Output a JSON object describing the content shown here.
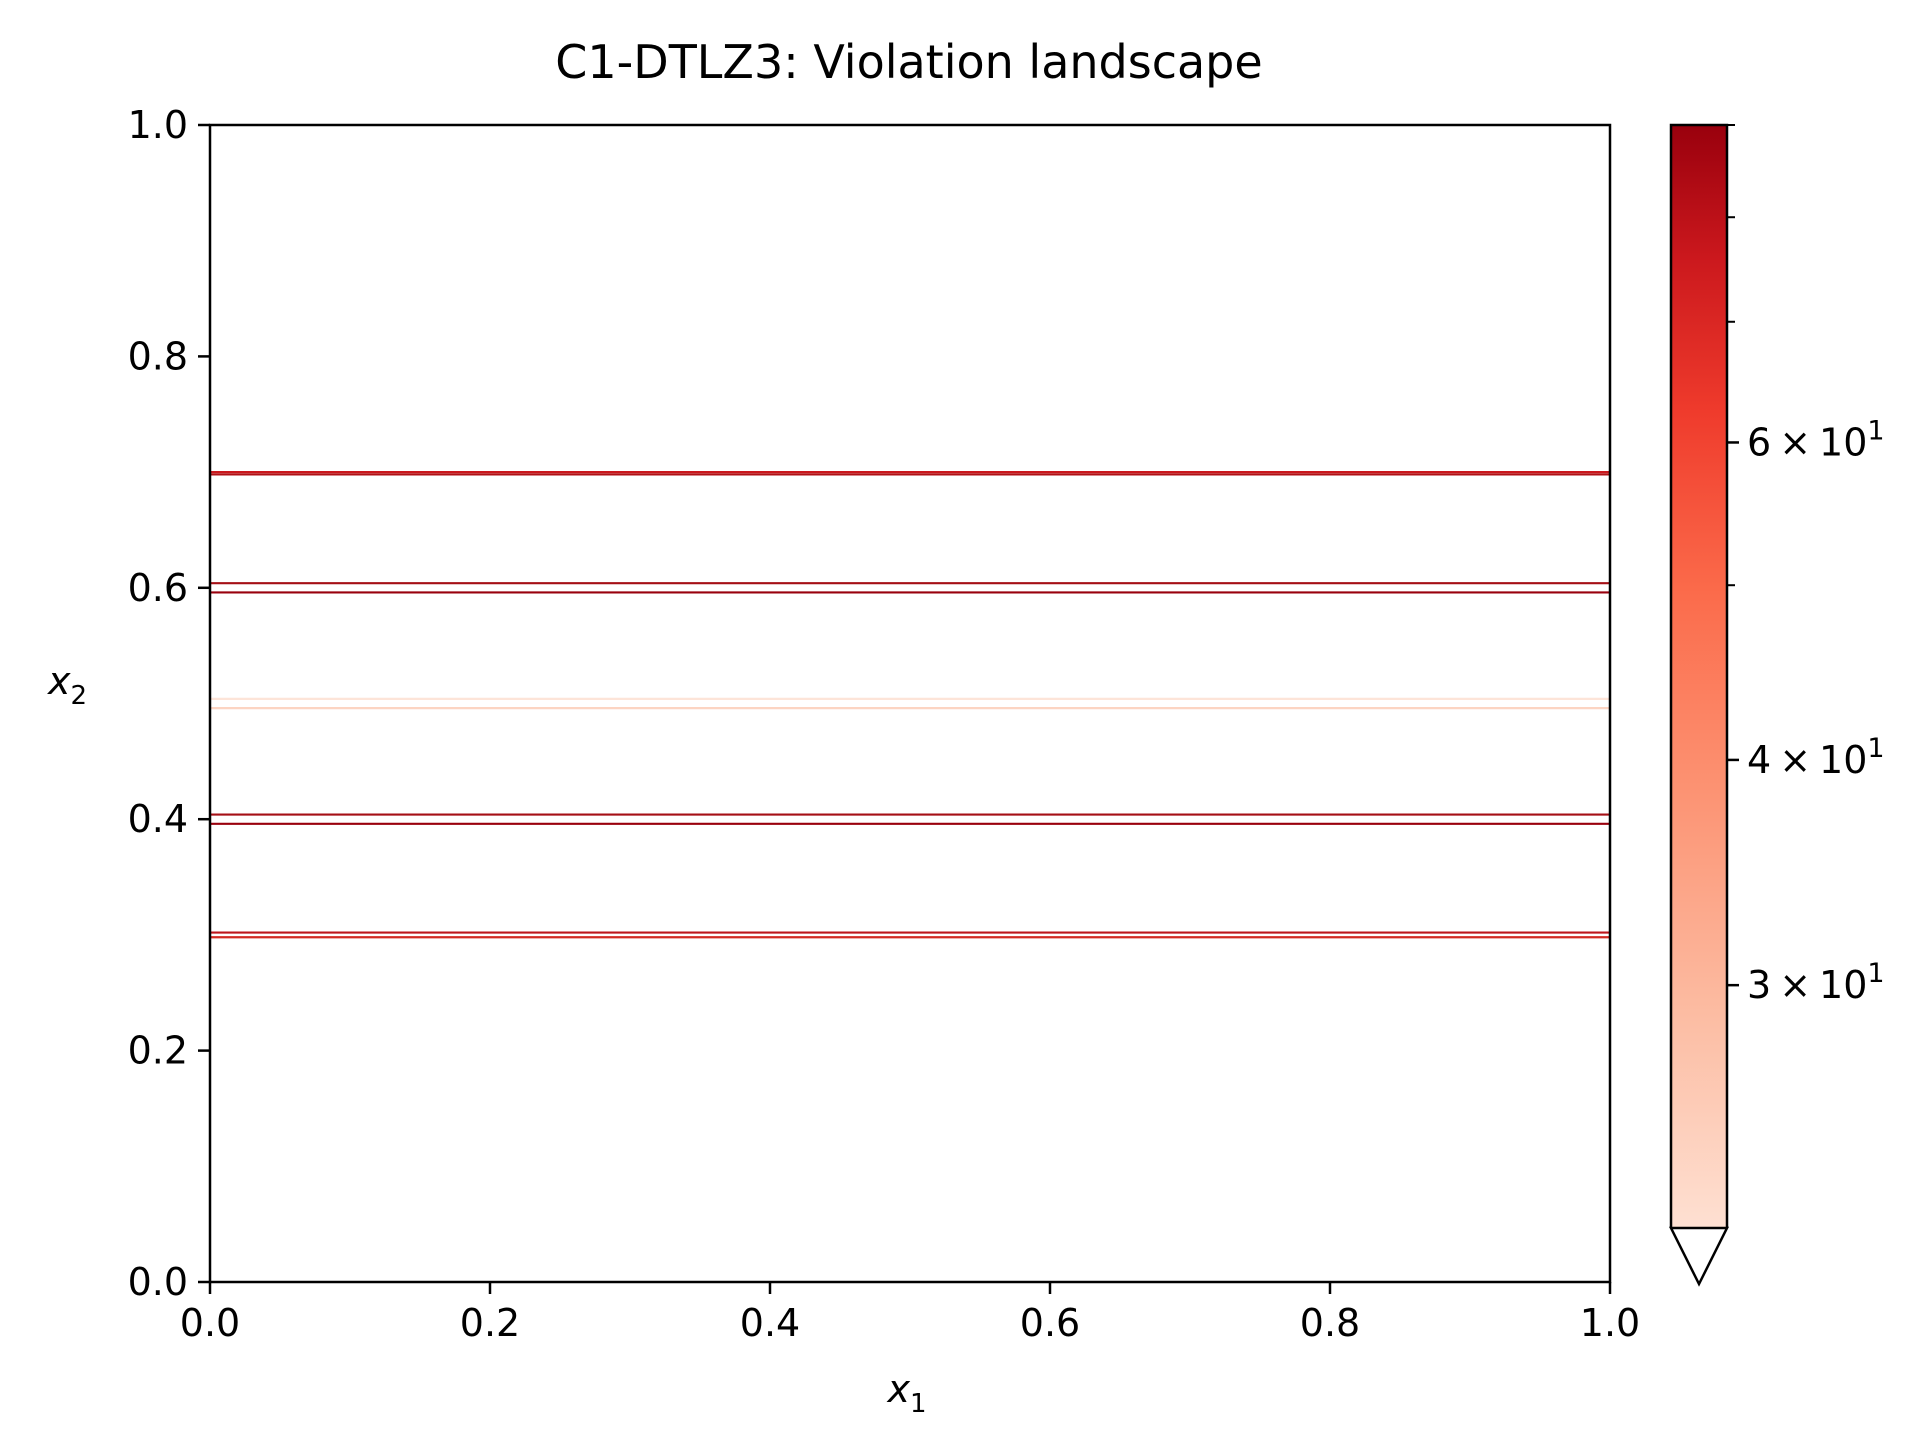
{
  "chart_data": {
    "type": "heatmap",
    "title": "C1-DTLZ3: Violation landscape",
    "xlabel": "x",
    "xlabel_sub": "1",
    "ylabel": "x",
    "ylabel_sub": "2",
    "xlim": [
      0.0,
      1.0
    ],
    "ylim": [
      0.0,
      1.0
    ],
    "x_ticks": [
      "0.0",
      "0.2",
      "0.4",
      "0.6",
      "0.8",
      "1.0"
    ],
    "y_ticks": [
      "0.0",
      "0.2",
      "0.4",
      "0.6",
      "0.8",
      "1.0"
    ],
    "grid": false,
    "colorbar": {
      "scale": "log",
      "cmap": "Reds",
      "range": [
        22,
        90
      ],
      "extend": "min",
      "major_ticks": [
        {
          "value": 30,
          "mantissa": "3",
          "base": "10",
          "exponent": "1"
        },
        {
          "value": 40,
          "mantissa": "4",
          "base": "10",
          "exponent": "1"
        },
        {
          "value": 60,
          "mantissa": "6",
          "base": "10",
          "exponent": "1"
        }
      ],
      "minor_ticks": [
        50,
        70,
        80,
        90
      ],
      "color_low": "#fee0d2",
      "color_high": "#99000d"
    },
    "contour_lines": [
      {
        "y": 0.7,
        "value": 75,
        "color": "#cb181d"
      },
      {
        "y": 0.698,
        "value": 80,
        "color": "#b11217"
      },
      {
        "y": 0.604,
        "value": 85,
        "color": "#a50f15"
      },
      {
        "y": 0.596,
        "value": 88,
        "color": "#99000d"
      },
      {
        "y": 0.504,
        "value": 23,
        "color": "#fde4d8"
      },
      {
        "y": 0.496,
        "value": 24,
        "color": "#fcd4c2"
      },
      {
        "y": 0.404,
        "value": 86,
        "color": "#a50f15"
      },
      {
        "y": 0.396,
        "value": 88,
        "color": "#99000d"
      },
      {
        "y": 0.302,
        "value": 78,
        "color": "#bd161b"
      },
      {
        "y": 0.298,
        "value": 74,
        "color": "#d22a22"
      }
    ]
  }
}
